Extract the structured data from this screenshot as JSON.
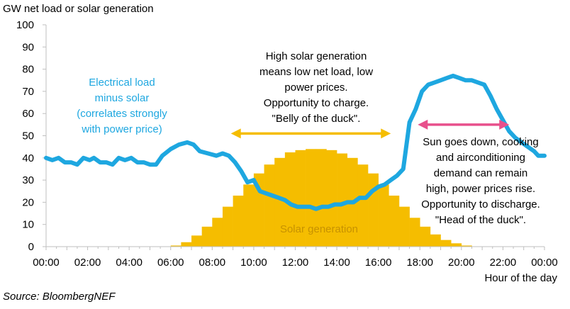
{
  "chart_data": {
    "type": "area",
    "ylabel": "GW net load or solar generation",
    "xlabel": "Hour of the day",
    "ylim": [
      0,
      100
    ],
    "yticks": [
      "0",
      "10",
      "20",
      "30",
      "40",
      "50",
      "60",
      "70",
      "80",
      "90",
      "100"
    ],
    "xticks": [
      "00:00",
      "02:00",
      "04:00",
      "06:00",
      "08:00",
      "10:00",
      "12:00",
      "14:00",
      "16:00",
      "18:00",
      "20:00",
      "22:00",
      "00:00"
    ],
    "grid": false,
    "series": [
      {
        "name": "Solar generation",
        "render": "step-area",
        "x": [
          0,
          0.5,
          1,
          1.5,
          2,
          2.5,
          3,
          3.5,
          4,
          4.5,
          5,
          5.5,
          6,
          6.5,
          7,
          7.5,
          8,
          8.5,
          9,
          9.5,
          10,
          10.5,
          11,
          11.5,
          12,
          12.5,
          13,
          13.5,
          14,
          14.5,
          15,
          15.5,
          16,
          16.5,
          17,
          17.5,
          18,
          18.5,
          19,
          19.5,
          20,
          20.5,
          21,
          21.5,
          22,
          22.5,
          23,
          23.5
        ],
        "values": [
          0,
          0,
          0,
          0,
          0,
          0,
          0,
          0,
          0,
          0,
          0,
          0,
          0.5,
          2,
          5,
          9,
          13,
          18,
          23,
          28,
          33,
          37,
          40,
          42.5,
          43.5,
          44,
          44,
          43.5,
          42,
          40,
          37,
          33,
          28,
          23,
          18,
          13,
          9,
          5.5,
          3,
          1.5,
          0.5,
          0,
          0,
          0,
          0,
          0,
          0,
          0
        ]
      },
      {
        "name": "Electrical load minus solar",
        "render": "line",
        "x": [
          0,
          0.3,
          0.6,
          0.9,
          1.2,
          1.5,
          1.8,
          2.1,
          2.3,
          2.6,
          2.9,
          3.2,
          3.5,
          3.8,
          4.1,
          4.4,
          4.7,
          5.0,
          5.3,
          5.6,
          6.0,
          6.4,
          6.8,
          7.1,
          7.4,
          7.8,
          8.2,
          8.5,
          8.8,
          9.1,
          9.4,
          9.7,
          10.0,
          10.3,
          10.6,
          10.9,
          11.2,
          11.5,
          11.8,
          12.1,
          12.4,
          12.7,
          13.0,
          13.3,
          13.6,
          13.9,
          14.2,
          14.5,
          14.8,
          15.1,
          15.4,
          15.7,
          16.0,
          16.3,
          16.6,
          16.9,
          17.2,
          17.5,
          17.8,
          18.1,
          18.4,
          18.7,
          19.0,
          19.3,
          19.6,
          19.9,
          20.2,
          20.5,
          20.8,
          21.1,
          21.4,
          21.7,
          22.0,
          22.3,
          22.6,
          22.9,
          23.2,
          23.5,
          23.7,
          24.0
        ],
        "values": [
          40,
          39,
          40,
          38,
          38,
          37,
          40,
          39,
          40,
          38,
          38,
          37,
          40,
          39,
          40,
          38,
          38,
          37,
          37,
          41,
          44,
          46,
          47,
          46,
          43,
          42,
          41,
          42,
          41,
          38,
          34,
          29,
          30,
          25,
          24,
          23,
          22,
          21,
          19,
          18,
          18,
          18,
          17,
          18,
          18,
          19,
          19,
          20,
          20,
          22,
          22,
          25,
          27,
          28,
          30,
          32,
          35,
          56,
          62,
          70,
          73,
          74,
          75,
          76,
          77,
          76,
          75,
          75,
          74,
          73,
          68,
          62,
          57,
          52,
          49,
          47,
          45,
          43,
          41,
          41
        ]
      }
    ],
    "annotations": {
      "load_label": [
        "Electrical load",
        "minus solar",
        "(correlates strongly",
        "with power price)"
      ],
      "belly": [
        "High solar generation",
        "means low net load, low",
        "power prices.",
        "Opportunity to charge.",
        "\"Belly of the duck\"."
      ],
      "head": [
        "Sun goes down, cooking",
        "and airconditioning",
        "demand can remain",
        "high, power prices rise.",
        "Opportunity to discharge.",
        "\"Head of the duck\"."
      ],
      "solar_label": "Solar generation"
    },
    "source": "Source: BloombergNEF",
    "colors": {
      "solar": "#f5bd00",
      "load": "#1ea7e0",
      "belly_arrow": "#f5bd00",
      "head_arrow": "#e8508c",
      "axis": "#bfbfbf"
    }
  }
}
